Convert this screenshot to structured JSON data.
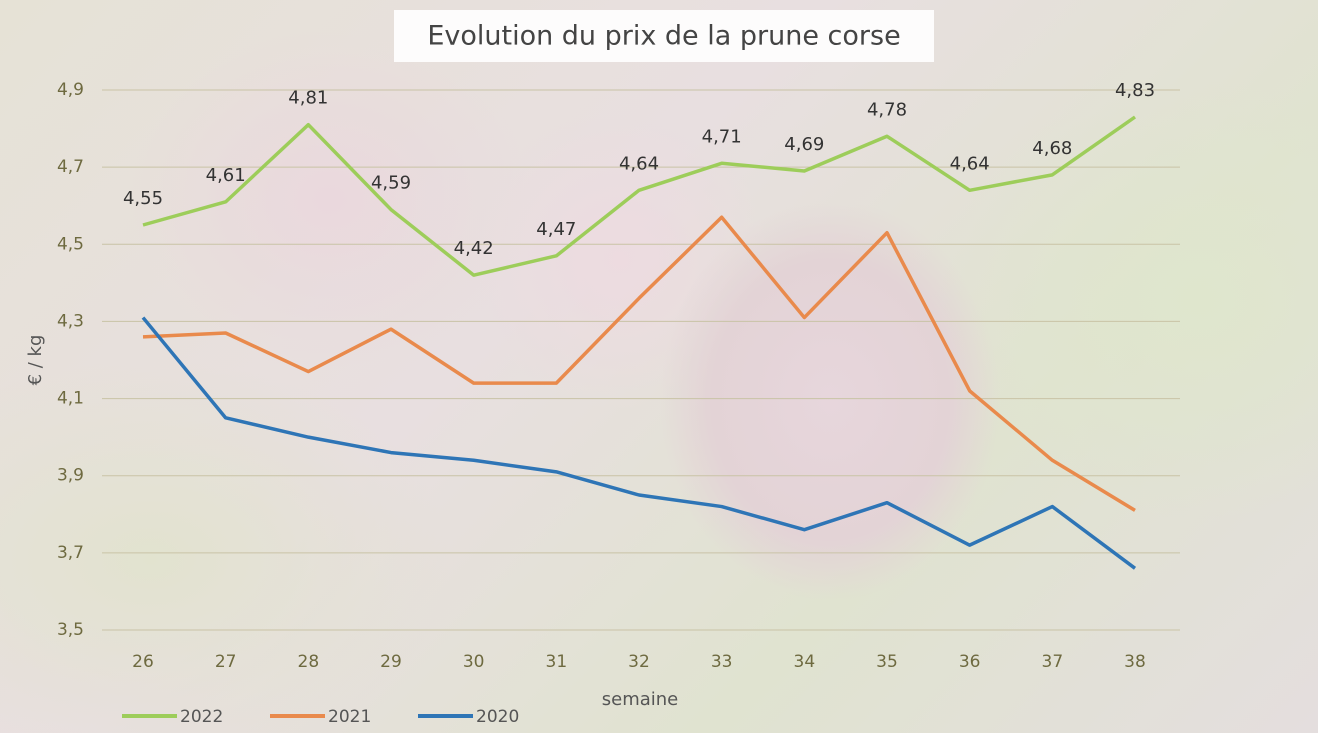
{
  "chart_data": {
    "type": "line",
    "title": "Evolution du prix de la prune corse",
    "x_label": "semaine",
    "y_label": "€ / kg",
    "categories": [
      "26",
      "27",
      "28",
      "29",
      "30",
      "31",
      "32",
      "33",
      "34",
      "35",
      "36",
      "37",
      "38"
    ],
    "series": [
      {
        "name": "2022",
        "color": "#9dcd5a",
        "values": [
          4.55,
          4.61,
          4.81,
          4.59,
          4.42,
          4.47,
          4.64,
          4.71,
          4.69,
          4.78,
          4.64,
          4.68,
          4.83
        ],
        "value_labels": [
          "4,55",
          "4,61",
          "4,81",
          "4,59",
          "4,42",
          "4,47",
          "4,64",
          "4,71",
          "4,69",
          "4,78",
          "4,64",
          "4,68",
          "4,83"
        ]
      },
      {
        "name": "2021",
        "color": "#e98a4c",
        "values": [
          4.26,
          4.27,
          4.17,
          4.28,
          4.14,
          4.14,
          4.36,
          4.57,
          4.31,
          4.53,
          4.12,
          3.94,
          3.81
        ]
      },
      {
        "name": "2020",
        "color": "#2e75b6",
        "values": [
          4.31,
          4.05,
          4.0,
          3.96,
          3.94,
          3.91,
          3.85,
          3.82,
          3.76,
          3.83,
          3.72,
          3.82,
          3.66
        ]
      }
    ],
    "ylim": [
      3.5,
      4.9
    ],
    "yticks": [
      {
        "value": 3.5,
        "label": "3,5"
      },
      {
        "value": 3.7,
        "label": "3,7"
      },
      {
        "value": 3.9,
        "label": "3,9"
      },
      {
        "value": 4.1,
        "label": "4,1"
      },
      {
        "value": 4.3,
        "label": "4,3"
      },
      {
        "value": 4.5,
        "label": "4,5"
      },
      {
        "value": 4.7,
        "label": "4,7"
      },
      {
        "value": 4.9,
        "label": "4,9"
      }
    ],
    "grid": true
  }
}
